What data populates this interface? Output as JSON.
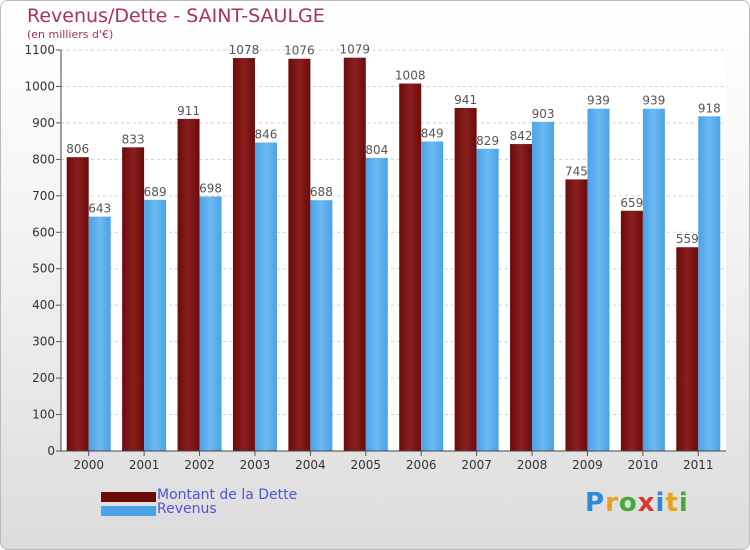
{
  "chart_title": "Revenus/Dette - SAINT-SAULGE",
  "chart_subtitle": "(en milliers d'€)",
  "colors": {
    "dette": "#6b0c0c",
    "dette_light": "#8a1e1e",
    "revenus": "#4aa3e8",
    "revenus_light": "#6db8f0",
    "label_text": "#555555"
  },
  "logo": {
    "text": "Proxiti",
    "letters": [
      {
        "ch": "P",
        "color": "#2e8ad8"
      },
      {
        "ch": "r",
        "color": "#e8a020"
      },
      {
        "ch": "o",
        "color": "#48a838"
      },
      {
        "ch": "x",
        "color": "#d83a2a"
      },
      {
        "ch": "i",
        "color": "#2e8ad8"
      },
      {
        "ch": "t",
        "color": "#e8a020"
      },
      {
        "ch": "i",
        "color": "#48a838"
      }
    ]
  },
  "chart_data": {
    "type": "bar",
    "title": "Revenus/Dette - SAINT-SAULGE",
    "subtitle": "(en milliers d'€)",
    "categories": [
      "2000",
      "2001",
      "2002",
      "2003",
      "2004",
      "2005",
      "2006",
      "2007",
      "2008",
      "2009",
      "2010",
      "2011"
    ],
    "series": [
      {
        "name": "Montant de la Dette",
        "values": [
          806,
          833,
          911,
          1078,
          1076,
          1079,
          1008,
          941,
          842,
          745,
          659,
          559
        ]
      },
      {
        "name": "Revenus",
        "values": [
          643,
          689,
          698,
          846,
          688,
          804,
          849,
          829,
          903,
          939,
          939,
          918
        ]
      }
    ],
    "ylim": [
      0,
      1100
    ],
    "yticks": [
      0,
      100,
      200,
      300,
      400,
      500,
      600,
      700,
      800,
      900,
      1000,
      1100
    ],
    "grid": true,
    "legend": "bottom-left"
  }
}
